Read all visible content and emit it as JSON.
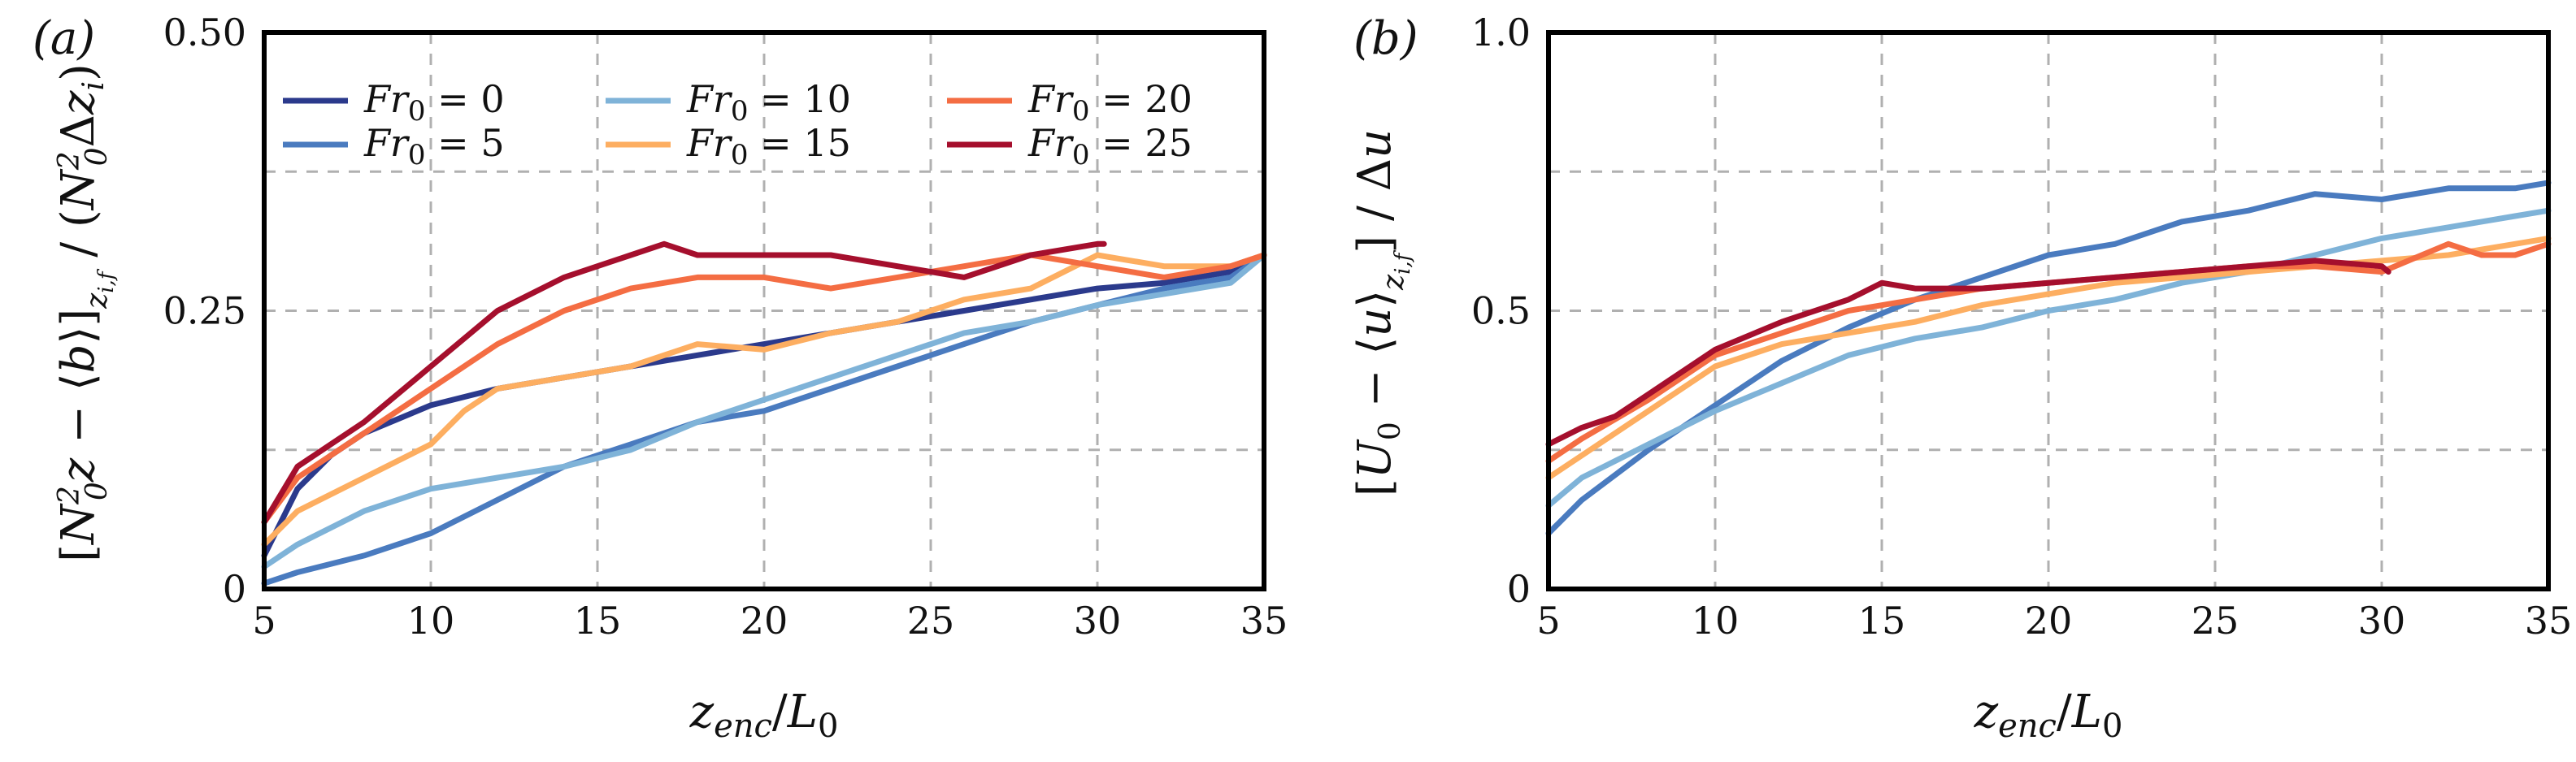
{
  "chart_data": [
    {
      "type": "line",
      "panel_label": "(a)",
      "title": "",
      "xlabel": "z_enc/L_0",
      "ylabel": "[N_0^2 z − ⟨b⟩]_{z_{i,f}} / (N_0^2 Δz_i)",
      "xlim": [
        5,
        35
      ],
      "ylim": [
        0,
        0.5
      ],
      "xticks": [
        5,
        10,
        15,
        20,
        25,
        30,
        35
      ],
      "xtick_labels": [
        "5",
        "10",
        "15",
        "20",
        "25",
        "30",
        "35"
      ],
      "yticks": [
        0,
        0.25,
        0.5
      ],
      "ytick_labels": [
        "0",
        "0.25",
        "0.50"
      ],
      "grid": true,
      "legend_position": "top-left",
      "series": [
        {
          "name": "Fr0 = 0",
          "color": "#2b3a8c",
          "x": [
            5,
            6,
            7,
            8,
            10,
            12,
            14,
            16,
            18,
            20,
            22,
            24,
            26,
            28,
            30,
            32,
            34,
            35
          ],
          "y": [
            0.03,
            0.09,
            0.12,
            0.14,
            0.165,
            0.18,
            0.19,
            0.2,
            0.21,
            0.22,
            0.23,
            0.24,
            0.25,
            0.26,
            0.27,
            0.275,
            0.285,
            0.3
          ]
        },
        {
          "name": "Fr0 = 5",
          "color": "#4a7bbf",
          "x": [
            5,
            6,
            8,
            10,
            12,
            14,
            16,
            18,
            20,
            22,
            24,
            26,
            28,
            30,
            32,
            34,
            35
          ],
          "y": [
            0.005,
            0.015,
            0.03,
            0.05,
            0.08,
            0.11,
            0.13,
            0.15,
            0.16,
            0.18,
            0.2,
            0.22,
            0.24,
            0.255,
            0.27,
            0.28,
            0.3
          ]
        },
        {
          "name": "Fr0 = 10",
          "color": "#7fb3d8",
          "x": [
            5,
            6,
            8,
            10,
            12,
            14,
            16,
            18,
            20,
            22,
            24,
            26,
            28,
            30,
            32,
            34,
            35
          ],
          "y": [
            0.02,
            0.04,
            0.07,
            0.09,
            0.1,
            0.11,
            0.125,
            0.15,
            0.17,
            0.19,
            0.21,
            0.23,
            0.24,
            0.255,
            0.265,
            0.275,
            0.3
          ]
        },
        {
          "name": "Fr0 = 15",
          "color": "#fdae61",
          "x": [
            5,
            6,
            8,
            10,
            11,
            12,
            14,
            16,
            18,
            20,
            22,
            24,
            26,
            28,
            30,
            32,
            34,
            35
          ],
          "y": [
            0.04,
            0.07,
            0.1,
            0.13,
            0.16,
            0.18,
            0.19,
            0.2,
            0.22,
            0.215,
            0.23,
            0.24,
            0.26,
            0.27,
            0.3,
            0.29,
            0.29,
            0.3
          ]
        },
        {
          "name": "Fr0 = 20",
          "color": "#f46d43",
          "x": [
            5,
            6,
            8,
            10,
            12,
            14,
            16,
            18,
            20,
            22,
            24,
            26,
            28,
            30,
            32,
            34,
            35
          ],
          "y": [
            0.06,
            0.1,
            0.14,
            0.18,
            0.22,
            0.25,
            0.27,
            0.28,
            0.28,
            0.27,
            0.28,
            0.29,
            0.3,
            0.29,
            0.28,
            0.29,
            0.3
          ]
        },
        {
          "name": "Fr0 = 25",
          "color": "#a50f2d",
          "x": [
            5,
            6,
            7,
            8,
            10,
            12,
            14,
            16,
            17,
            18,
            20,
            22,
            24,
            26,
            28,
            30,
            30.2
          ],
          "y": [
            0.06,
            0.11,
            0.13,
            0.15,
            0.2,
            0.25,
            0.28,
            0.3,
            0.31,
            0.3,
            0.3,
            0.3,
            0.29,
            0.28,
            0.3,
            0.31,
            0.31
          ]
        }
      ]
    },
    {
      "type": "line",
      "panel_label": "(b)",
      "title": "",
      "xlabel": "z_enc/L_0",
      "ylabel": "[U_0 − ⟨u⟩_{z_{i,f}}] / Δu",
      "xlim": [
        5,
        35
      ],
      "ylim": [
        0,
        1.0
      ],
      "xticks": [
        5,
        10,
        15,
        20,
        25,
        30,
        35
      ],
      "xtick_labels": [
        "5",
        "10",
        "15",
        "20",
        "25",
        "30",
        "35"
      ],
      "yticks": [
        0,
        0.5,
        1.0
      ],
      "ytick_labels": [
        "0",
        "0.5",
        "1.0"
      ],
      "grid": true,
      "series": [
        {
          "name": "Fr0 = 5",
          "color": "#4a7bbf",
          "x": [
            5,
            6,
            8,
            10,
            12,
            14,
            16,
            18,
            20,
            22,
            24,
            26,
            28,
            30,
            32,
            34,
            35
          ],
          "y": [
            0.1,
            0.16,
            0.25,
            0.33,
            0.41,
            0.47,
            0.52,
            0.56,
            0.6,
            0.62,
            0.66,
            0.68,
            0.71,
            0.7,
            0.72,
            0.72,
            0.73
          ]
        },
        {
          "name": "Fr0 = 10",
          "color": "#7fb3d8",
          "x": [
            5,
            6,
            8,
            10,
            12,
            14,
            16,
            18,
            20,
            22,
            24,
            26,
            28,
            30,
            32,
            34,
            35
          ],
          "y": [
            0.15,
            0.2,
            0.26,
            0.32,
            0.37,
            0.42,
            0.45,
            0.47,
            0.5,
            0.52,
            0.55,
            0.57,
            0.6,
            0.63,
            0.65,
            0.67,
            0.68
          ]
        },
        {
          "name": "Fr0 = 15",
          "color": "#fdae61",
          "x": [
            5,
            6,
            8,
            10,
            12,
            14,
            16,
            18,
            20,
            22,
            24,
            26,
            28,
            30,
            32,
            34,
            35
          ],
          "y": [
            0.2,
            0.24,
            0.32,
            0.4,
            0.44,
            0.46,
            0.48,
            0.51,
            0.53,
            0.55,
            0.56,
            0.57,
            0.58,
            0.59,
            0.6,
            0.62,
            0.63
          ]
        },
        {
          "name": "Fr0 = 20",
          "color": "#f46d43",
          "x": [
            5,
            6,
            8,
            10,
            12,
            14,
            16,
            18,
            20,
            22,
            24,
            26,
            28,
            30,
            32,
            33,
            34,
            35
          ],
          "y": [
            0.23,
            0.27,
            0.34,
            0.42,
            0.46,
            0.5,
            0.52,
            0.54,
            0.55,
            0.56,
            0.57,
            0.58,
            0.58,
            0.57,
            0.62,
            0.6,
            0.6,
            0.62
          ]
        },
        {
          "name": "Fr0 = 25",
          "color": "#a50f2d",
          "x": [
            5,
            6,
            7,
            8,
            10,
            12,
            14,
            15,
            16,
            18,
            20,
            22,
            24,
            26,
            28,
            30,
            30.2
          ],
          "y": [
            0.26,
            0.29,
            0.31,
            0.35,
            0.43,
            0.48,
            0.52,
            0.55,
            0.54,
            0.54,
            0.55,
            0.56,
            0.57,
            0.58,
            0.59,
            0.58,
            0.57
          ]
        }
      ]
    }
  ]
}
